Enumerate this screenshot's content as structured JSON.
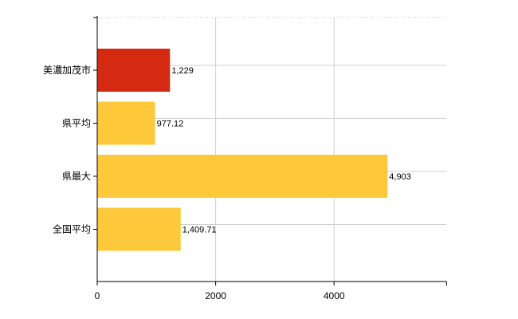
{
  "chart_data": {
    "type": "bar",
    "orientation": "horizontal",
    "categories": [
      "美濃加茂市",
      "県平均",
      "県最大",
      "全国平均"
    ],
    "values": [
      1229,
      977.12,
      4903,
      1409.71
    ],
    "value_labels": [
      "1,229",
      "977.12",
      "4,903",
      "1,409.71"
    ],
    "colors": [
      "#d42a12",
      "#fdc93a",
      "#fdc93a",
      "#fdc93a"
    ],
    "xlim": [
      0,
      5900
    ],
    "xticks": [
      0,
      2000,
      4000
    ],
    "xtick_labels": [
      "0",
      "2000",
      "4000"
    ],
    "grid": true,
    "legend": false
  }
}
